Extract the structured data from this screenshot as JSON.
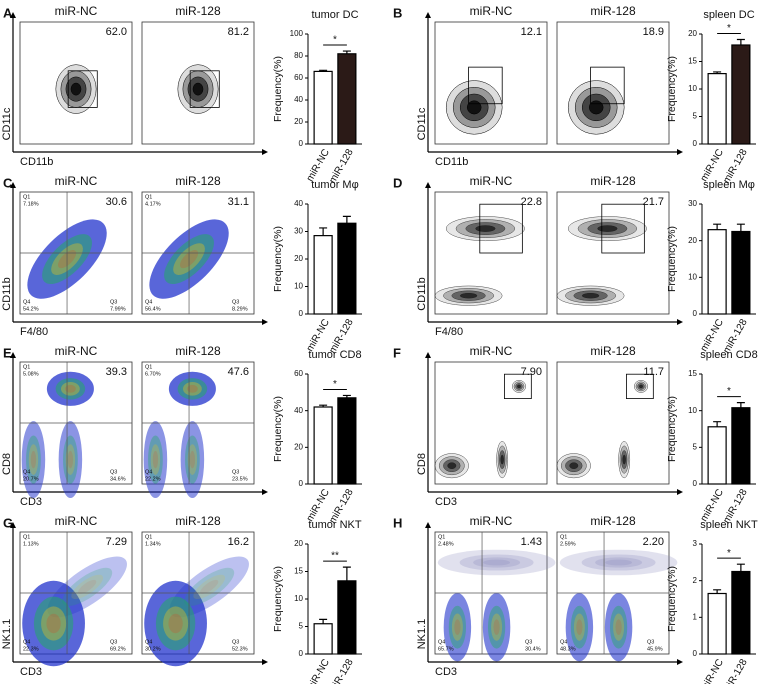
{
  "panels": [
    {
      "letter": "A",
      "x_label": "CD11b",
      "y_label": "CD11c",
      "plots": [
        {
          "title": "miR-NC",
          "gate": "62.0"
        },
        {
          "title": "miR-128",
          "gate": "81.2"
        }
      ]
    },
    {
      "letter": "B",
      "x_label": "CD11b",
      "y_label": "CD11c",
      "plots": [
        {
          "title": "miR-NC",
          "gate": "12.1"
        },
        {
          "title": "miR-128",
          "gate": "18.9"
        }
      ]
    },
    {
      "letter": "C",
      "x_label": "F4/80",
      "y_label": "CD11b",
      "plots": [
        {
          "title": "miR-NC",
          "gate": "30.6",
          "quadrants": [
            {
              "name": "Q1",
              "value": "7.18%"
            },
            {
              "name": "Q4",
              "value": "54.2%"
            },
            {
              "name": "Q3",
              "value": "7.99%"
            }
          ]
        },
        {
          "title": "miR-128",
          "gate": "31.1",
          "quadrants": [
            {
              "name": "Q1",
              "value": "4.17%"
            },
            {
              "name": "Q4",
              "value": "56.4%"
            },
            {
              "name": "Q3",
              "value": "8.29%"
            }
          ]
        }
      ]
    },
    {
      "letter": "D",
      "x_label": "F4/80",
      "y_label": "CD11b",
      "plots": [
        {
          "title": "miR-NC",
          "gate": "22.8"
        },
        {
          "title": "miR-128",
          "gate": "21.7"
        }
      ]
    },
    {
      "letter": "E",
      "x_label": "CD3",
      "y_label": "CD8",
      "plots": [
        {
          "title": "miR-NC",
          "gate": "39.3",
          "quadrants": [
            {
              "name": "Q1",
              "value": "5.08%"
            },
            {
              "name": "Q4",
              "value": "20.7%"
            },
            {
              "name": "Q3",
              "value": "34.6%"
            }
          ]
        },
        {
          "title": "miR-128",
          "gate": "47.6",
          "quadrants": [
            {
              "name": "Q1",
              "value": "6.70%"
            },
            {
              "name": "Q4",
              "value": "22.2%"
            },
            {
              "name": "Q3",
              "value": "23.5%"
            }
          ]
        }
      ]
    },
    {
      "letter": "F",
      "x_label": "CD3",
      "y_label": "CD8",
      "plots": [
        {
          "title": "miR-NC",
          "gate": "7.90"
        },
        {
          "title": "miR-128",
          "gate": "11.7"
        }
      ]
    },
    {
      "letter": "G",
      "x_label": "CD3",
      "y_label": "NK1.1",
      "plots": [
        {
          "title": "miR-NC",
          "gate": "7.29",
          "quadrants": [
            {
              "name": "Q1",
              "value": "1.13%"
            },
            {
              "name": "Q4",
              "value": "22.3%"
            },
            {
              "name": "Q3",
              "value": "69.2%"
            }
          ]
        },
        {
          "title": "miR-128",
          "gate": "16.2",
          "quadrants": [
            {
              "name": "Q1",
              "value": "1.34%"
            },
            {
              "name": "Q4",
              "value": "30.2%"
            },
            {
              "name": "Q3",
              "value": "52.3%"
            }
          ]
        }
      ]
    },
    {
      "letter": "H",
      "x_label": "CD3",
      "y_label": "NK1.1",
      "plots": [
        {
          "title": "miR-NC",
          "gate": "1.43",
          "quadrants": [
            {
              "name": "Q1",
              "value": "2.48%"
            },
            {
              "name": "Q4",
              "value": "65.7%"
            },
            {
              "name": "Q3",
              "value": "30.4%"
            }
          ]
        },
        {
          "title": "miR-128",
          "gate": "2.20",
          "quadrants": [
            {
              "name": "Q1",
              "value": "2.59%"
            },
            {
              "name": "Q4",
              "value": "48.3%"
            },
            {
              "name": "Q3",
              "value": "45.9%"
            }
          ]
        }
      ]
    }
  ],
  "chart_data": [
    {
      "type": "bar",
      "title": "tumor DC",
      "ylabel": "Frequency(%)",
      "categories": [
        "miR-NC",
        "miR-128"
      ],
      "values": [
        66,
        82
      ],
      "errors": [
        1,
        2.5
      ],
      "colors": [
        "#ffffff",
        "#2b1a17"
      ],
      "ylim": [
        0,
        100
      ],
      "yticks": [
        0,
        20,
        40,
        60,
        80,
        100
      ],
      "significance": "*"
    },
    {
      "type": "bar",
      "title": "spleen DC",
      "ylabel": "Frequency(%)",
      "categories": [
        "miR-NC",
        "miR-128"
      ],
      "values": [
        12.8,
        18
      ],
      "errors": [
        0.3,
        1
      ],
      "colors": [
        "#ffffff",
        "#2b1a17"
      ],
      "ylim": [
        0,
        20
      ],
      "yticks": [
        0,
        5,
        10,
        15,
        20
      ],
      "significance": "*"
    },
    {
      "type": "bar",
      "title": "tumor Mφ",
      "ylabel": "Frequency(%)",
      "categories": [
        "miR-NC",
        "miR-128"
      ],
      "values": [
        28.5,
        33
      ],
      "errors": [
        2.8,
        2.5
      ],
      "colors": [
        "#ffffff",
        "#000000"
      ],
      "ylim": [
        0,
        40
      ],
      "yticks": [
        0,
        10,
        20,
        30,
        40
      ]
    },
    {
      "type": "bar",
      "title": "spleen Mφ",
      "ylabel": "Frequency(%)",
      "categories": [
        "miR-NC",
        "miR-128"
      ],
      "values": [
        23,
        22.5
      ],
      "errors": [
        1.5,
        2
      ],
      "colors": [
        "#ffffff",
        "#000000"
      ],
      "ylim": [
        0,
        30
      ],
      "yticks": [
        0,
        10,
        20,
        30
      ]
    },
    {
      "type": "bar",
      "title": "tumor CD8",
      "ylabel": "Frequency(%)",
      "categories": [
        "miR-NC",
        "miR-128"
      ],
      "values": [
        42,
        47
      ],
      "errors": [
        1,
        1.3
      ],
      "colors": [
        "#ffffff",
        "#000000"
      ],
      "ylim": [
        0,
        60
      ],
      "yticks": [
        0,
        20,
        40,
        60
      ],
      "significance": "*"
    },
    {
      "type": "bar",
      "title": "spleen CD8",
      "ylabel": "Frequency(%)",
      "categories": [
        "miR-NC",
        "miR-128"
      ],
      "values": [
        7.8,
        10.4
      ],
      "errors": [
        0.7,
        0.7
      ],
      "colors": [
        "#ffffff",
        "#000000"
      ],
      "ylim": [
        0,
        15
      ],
      "yticks": [
        0,
        5,
        10,
        15
      ],
      "significance": "*"
    },
    {
      "type": "bar",
      "title": "tumor NKT",
      "ylabel": "Frequency(%)",
      "categories": [
        "miR-NC",
        "miR-128"
      ],
      "values": [
        5.5,
        13.3
      ],
      "errors": [
        0.8,
        2.5
      ],
      "colors": [
        "#ffffff",
        "#000000"
      ],
      "ylim": [
        0,
        20
      ],
      "yticks": [
        0,
        5,
        10,
        15,
        20
      ],
      "significance": "**"
    },
    {
      "type": "bar",
      "title": "spleen NKT",
      "ylabel": "Frequency(%)",
      "categories": [
        "miR-NC",
        "miR-128"
      ],
      "values": [
        1.65,
        2.25
      ],
      "errors": [
        0.1,
        0.2
      ],
      "colors": [
        "#ffffff",
        "#000000"
      ],
      "ylim": [
        0,
        3
      ],
      "yticks": [
        0,
        1,
        2,
        3
      ],
      "significance": "*"
    }
  ]
}
